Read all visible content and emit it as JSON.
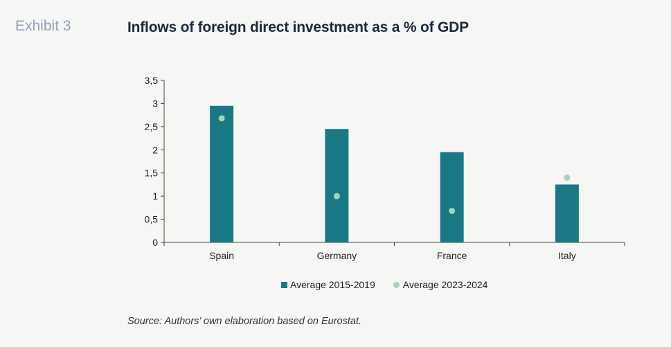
{
  "header": {
    "exhibit": "Exhibit 3",
    "title": "Inflows of foreign direct investment as a % of GDP"
  },
  "colors": {
    "bar": "#1a7885",
    "dot": "#9dd6bd"
  },
  "chart_data": {
    "type": "bar",
    "categories": [
      "Spain",
      "Germany",
      "France",
      "Italy"
    ],
    "series": [
      {
        "name": "Average 2015-2019",
        "kind": "bar",
        "values": [
          2.95,
          2.45,
          1.95,
          1.25
        ]
      },
      {
        "name": "Average 2023-2024",
        "kind": "scatter",
        "values": [
          2.68,
          1.0,
          0.68,
          1.4
        ]
      }
    ],
    "yticks": [
      "0",
      "0,5",
      "1",
      "1,5",
      "2",
      "2,5",
      "3",
      "3,5"
    ],
    "ylim": [
      0,
      3.5
    ],
    "grid": false,
    "legend_position": "bottom"
  },
  "source": "Source: Authors’ own elaboration based on Eurostat."
}
